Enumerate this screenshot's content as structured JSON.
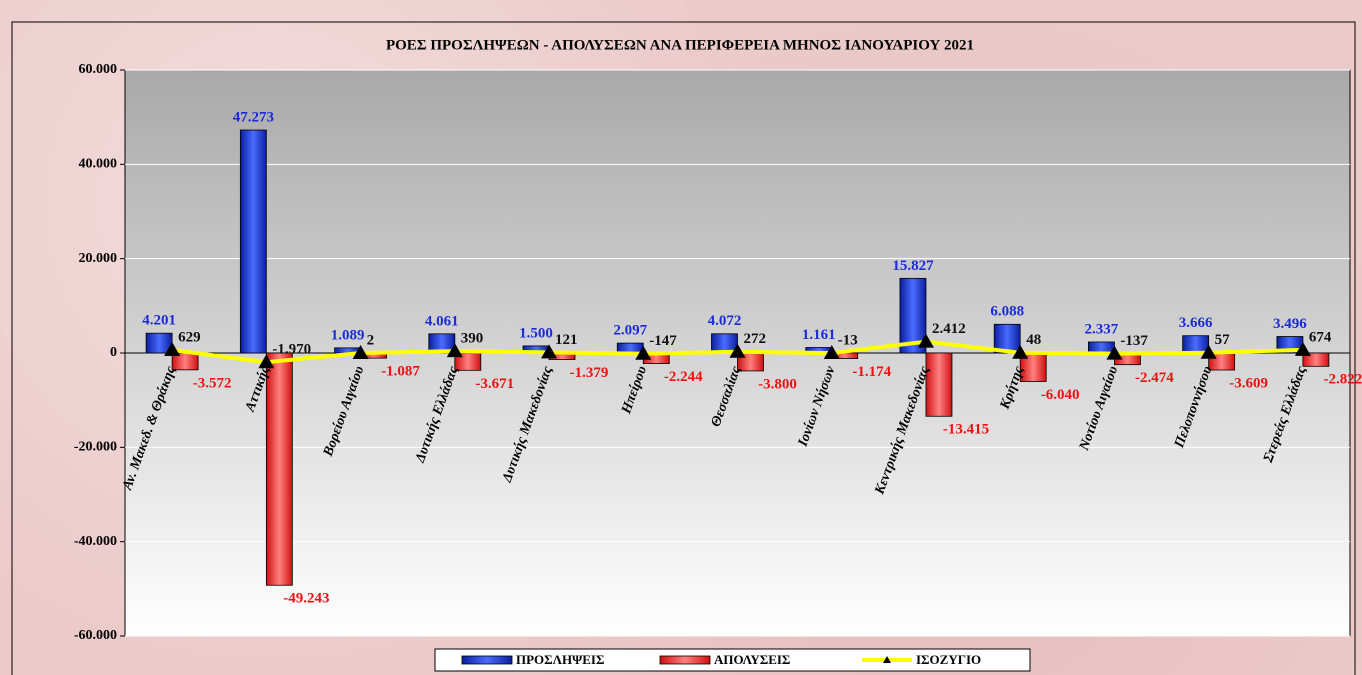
{
  "chart_data": {
    "type": "bar",
    "title": "ΡΟΕΣ ΠΡΟΣΛΗΨΕΩΝ - ΑΠΟΛΥΣΕΩΝ ΑΝΑ ΠΕΡΙΦΕΡΕΙΑ ΜΗΝΟΣ  ΙΑΝΟΥΑΡΙΟΥ  2021",
    "categories": [
      "Αν. Μακεδ. & Θράκης",
      "Αττικής",
      "Βορείου Αιγαίου",
      "Δυτικής Ελλάδας",
      "Δυτικής Μακεδονίας",
      "Ηπείρου",
      "Θεσσαλίας",
      "Ιονίων Νήσων",
      "Κεντρικής Μακεδονίας",
      "Κρήτης",
      "Νοτίου Αιγαίου",
      "Πελοποννήσου",
      "Στερεάς Ελλάδας"
    ],
    "series": [
      {
        "name": "ΠΡΟΣΛΗΨΕΙΣ",
        "type": "bar",
        "color": "#1f3fe0",
        "values": [
          4201,
          47273,
          1089,
          4061,
          1500,
          2097,
          4072,
          1161,
          15827,
          6088,
          2337,
          3666,
          3496
        ],
        "value_labels": [
          "4.201",
          "47.273",
          "1.089",
          "4.061",
          "1.500",
          "2.097",
          "4.072",
          "1.161",
          "15.827",
          "6.088",
          "2.337",
          "3.666",
          "3.496"
        ]
      },
      {
        "name": "ΑΠΟΛΥΣΕΙΣ",
        "type": "bar",
        "color": "#ff4040",
        "values": [
          -3572,
          -49243,
          -1087,
          -3671,
          -1379,
          -2244,
          -3800,
          -1174,
          -13415,
          -6040,
          -2474,
          -3609,
          -2822
        ],
        "value_labels": [
          "-3.572",
          "-49.243",
          "-1.087",
          "-3.671",
          "-1.379",
          "-2.244",
          "-3.800",
          "-1.174",
          "-13.415",
          "-6.040",
          "-2.474",
          "-3.609",
          "-2.822"
        ]
      },
      {
        "name": "ΙΣΟΖΥΓΙΟ",
        "type": "line",
        "color": "#ffff00",
        "values": [
          629,
          -1970,
          2,
          390,
          121,
          -147,
          272,
          -13,
          2412,
          48,
          -137,
          57,
          674
        ],
        "value_labels": [
          "629",
          "-1.970",
          "2",
          "390",
          "121",
          "-147",
          "272",
          "-13",
          "2.412",
          "48",
          "-137",
          "57",
          "674"
        ]
      }
    ],
    "ylim": [
      -60000,
      60000
    ],
    "yticks": [
      {
        "value": -60000,
        "label": "-60.000"
      },
      {
        "value": -40000,
        "label": "-40.000"
      },
      {
        "value": -20000,
        "label": "-20.000"
      },
      0,
      {
        "value": 20000,
        "label": "20.000"
      },
      {
        "value": 40000,
        "label": "40.000"
      },
      {
        "value": 60000,
        "label": "60.000"
      }
    ],
    "grid": true,
    "legend": "bottom"
  }
}
